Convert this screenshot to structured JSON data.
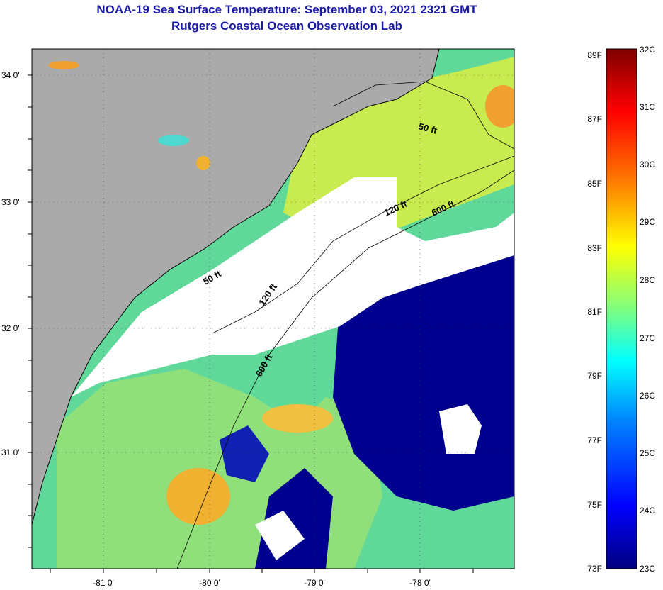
{
  "title": "NOAA-19 Sea Surface Temperature:  September 03, 2021 2321 GMT",
  "subtitle": "Rutgers Coastal Ocean Observation Lab",
  "map": {
    "lat_labels": [
      "34 0'",
      "33 0'",
      "32 0'",
      "31 0'"
    ],
    "lon_labels": [
      "-81 0'",
      "-80 0'",
      "-79 0'",
      "-78 0'"
    ],
    "contour_labels": [
      "50 ft",
      "120 ft",
      "600 ft",
      "50 ft",
      "120 ft",
      "600 ft"
    ],
    "colors": {
      "land": "#aaaaaa",
      "cloud": "#ffffff",
      "cold": "#00008f",
      "mid": "#1e90ff",
      "cyan": "#3fd8e0",
      "green": "#9ee26a",
      "yellow": "#e8f040",
      "orange": "#f0a020",
      "coast_line": "#000000"
    }
  },
  "colorbar": {
    "fahrenheit_labels": [
      "89F",
      "87F",
      "85F",
      "83F",
      "81F",
      "79F",
      "77F",
      "75F",
      "73F"
    ],
    "celsius_labels": [
      "32C",
      "31C",
      "30C",
      "29C",
      "28C",
      "27C",
      "26C",
      "25C",
      "24C",
      "23C"
    ]
  }
}
